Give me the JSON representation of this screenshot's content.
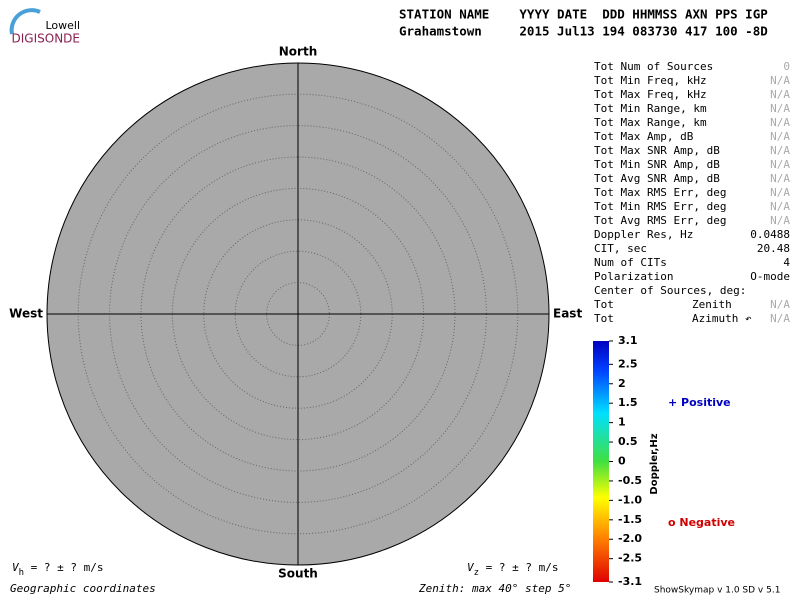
{
  "logo": {
    "top": "Lowell",
    "bottom": "DIGISONDE"
  },
  "header": {
    "labels": "STATION NAME    YYYY DATE  DDD HHMMSS AXN PPS IGP",
    "values": "Grahamstown     2015 Jul13 194 083730 417 100 -8D"
  },
  "stats": [
    {
      "label": "Tot Num of Sources",
      "value": "0"
    },
    {
      "label": "Tot Min Freq, kHz",
      "value": "N/A"
    },
    {
      "label": "Tot Max Freq, kHz",
      "value": "N/A"
    },
    {
      "label": "Tot Min Range, km",
      "value": "N/A"
    },
    {
      "label": "Tot Max Range, km",
      "value": "N/A"
    },
    {
      "label": "Tot Max Amp, dB",
      "value": "N/A"
    },
    {
      "label": "Tot Max SNR Amp, dB",
      "value": "N/A"
    },
    {
      "label": "Tot Min SNR Amp, dB",
      "value": "N/A"
    },
    {
      "label": "Tot Avg SNR Amp, dB",
      "value": "N/A"
    },
    {
      "label": "Tot Max RMS Err, deg",
      "value": "N/A"
    },
    {
      "label": "Tot Min RMS Err, deg",
      "value": "N/A"
    },
    {
      "label": "Tot Avg RMS Err, deg",
      "value": "N/A"
    },
    {
      "label": "Doppler Res, Hz",
      "value": "0.0488"
    },
    {
      "label": "CIT, sec",
      "value": "20.48"
    },
    {
      "label": "Num of CITs",
      "value": "4"
    },
    {
      "label": "Polarization",
      "value": "O-mode"
    },
    {
      "label": "Center of Sources, deg:"
    },
    {
      "label": "Tot",
      "sub": "Zenith",
      "value": "N/A"
    },
    {
      "label": "Tot",
      "sub": "Azimuth ↶",
      "value": "N/A"
    }
  ],
  "directions": {
    "north": "North",
    "south": "South",
    "east": "East",
    "west": "West"
  },
  "colorbar": {
    "label": "Doppler,Hz",
    "lim": [
      -3.1,
      3.1
    ],
    "ticks": [
      3.1,
      2.5,
      2,
      1.5,
      1,
      0.5,
      0,
      -0.5,
      {
        "value": -1,
        "label": "-1.0"
      },
      -1.5,
      {
        "value": -2,
        "label": "-2.0"
      },
      -2.5,
      -3.1
    ]
  },
  "legend": {
    "positive": "+ Positive",
    "negative": "o Negative"
  },
  "footer": {
    "vh": "V",
    "vh_sub": "h",
    "vh_rest": " =  ? ±  ? m/s",
    "vz": "V",
    "vz_sub": "z",
    "vz_rest": " =  ? ±  ? m/s",
    "coords": "Geographic coordinates",
    "zenith": "Zenith: max 40°  step 5°",
    "version": "ShowSkymap v 1.0  SD v 5.1"
  }
}
